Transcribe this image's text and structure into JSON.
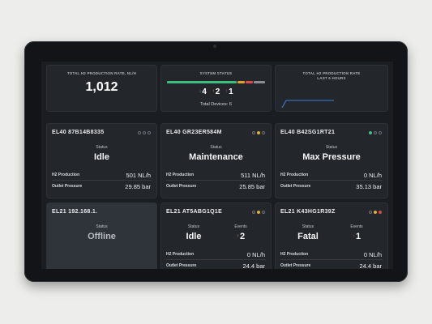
{
  "summary": {
    "production": {
      "label": "TOTAL H2 PRODUCTION RATE, NL/H",
      "value": "1,012"
    },
    "system_status": {
      "label": "SYSTEM STATUS",
      "bar_colors": [
        "#3fbf7f",
        "#e0a030",
        "#e04848",
        "#8a8f96"
      ],
      "warning_count": "4",
      "error_count": "2",
      "fatal_count": "1",
      "total_devices": "Total Devices: 6"
    },
    "rate_chart": {
      "label_line1": "TOTAL H2 PRODUCTION RATE",
      "label_line2": "LAST 6 HOURS",
      "line_color": "#3d7fe0"
    }
  },
  "devices": [
    {
      "name": "EL40 87B14B8335",
      "status_label": "Status",
      "status": "Idle",
      "h2_label": "H2 Production",
      "h2_value": "501 NL/h",
      "pressure_label": "Outlet Pressure",
      "pressure_value": "29.85 bar",
      "dots": [
        "#6a7078",
        "#6a7078",
        "#6a7078"
      ]
    },
    {
      "name": "EL40 GR23ER584M",
      "status_label": "Status",
      "status": "Maintenance",
      "h2_label": "H2 Production",
      "h2_value": "511 NL/h",
      "pressure_label": "Outlet Pressure",
      "pressure_value": "25.85 bar",
      "dots": [
        "#6a7078",
        "#e0b030",
        "#6a7078"
      ]
    },
    {
      "name": "EL40 B42SG1RT21",
      "status_label": "Status",
      "status": "Max Pressure",
      "h2_label": "H2 Production",
      "h2_value": "0 NL/h",
      "pressure_label": "Outlet Pressure",
      "pressure_value": "35.13 bar",
      "dots": [
        "#3fbf7f",
        "#6a7078",
        "#6a7078"
      ]
    },
    {
      "name": "EL21 192.168.1.",
      "status_label": "Status",
      "status": "Offline"
    },
    {
      "name": "EL21 AT5ABG1Q1E",
      "status_label": "Status",
      "status": "Idle",
      "events_label": "Events",
      "events_value": "2",
      "h2_label": "H2 Production",
      "h2_value": "0 NL/h",
      "pressure_label": "Outlet Pressure",
      "pressure_value": "24.4 bar",
      "dots": [
        "#6a7078",
        "#e0b030",
        "#6a7078"
      ]
    },
    {
      "name": "EL21 K43HG1R39Z",
      "status_label": "Status",
      "status": "Fatal",
      "events_label": "Events",
      "events_value": "1",
      "h2_label": "H2 Production",
      "h2_value": "0 NL/h",
      "pressure_label": "Outlet Pressure",
      "pressure_value": "24.4 bar",
      "dots": [
        "#6a7078",
        "#e0b030",
        "#e04848"
      ]
    }
  ]
}
